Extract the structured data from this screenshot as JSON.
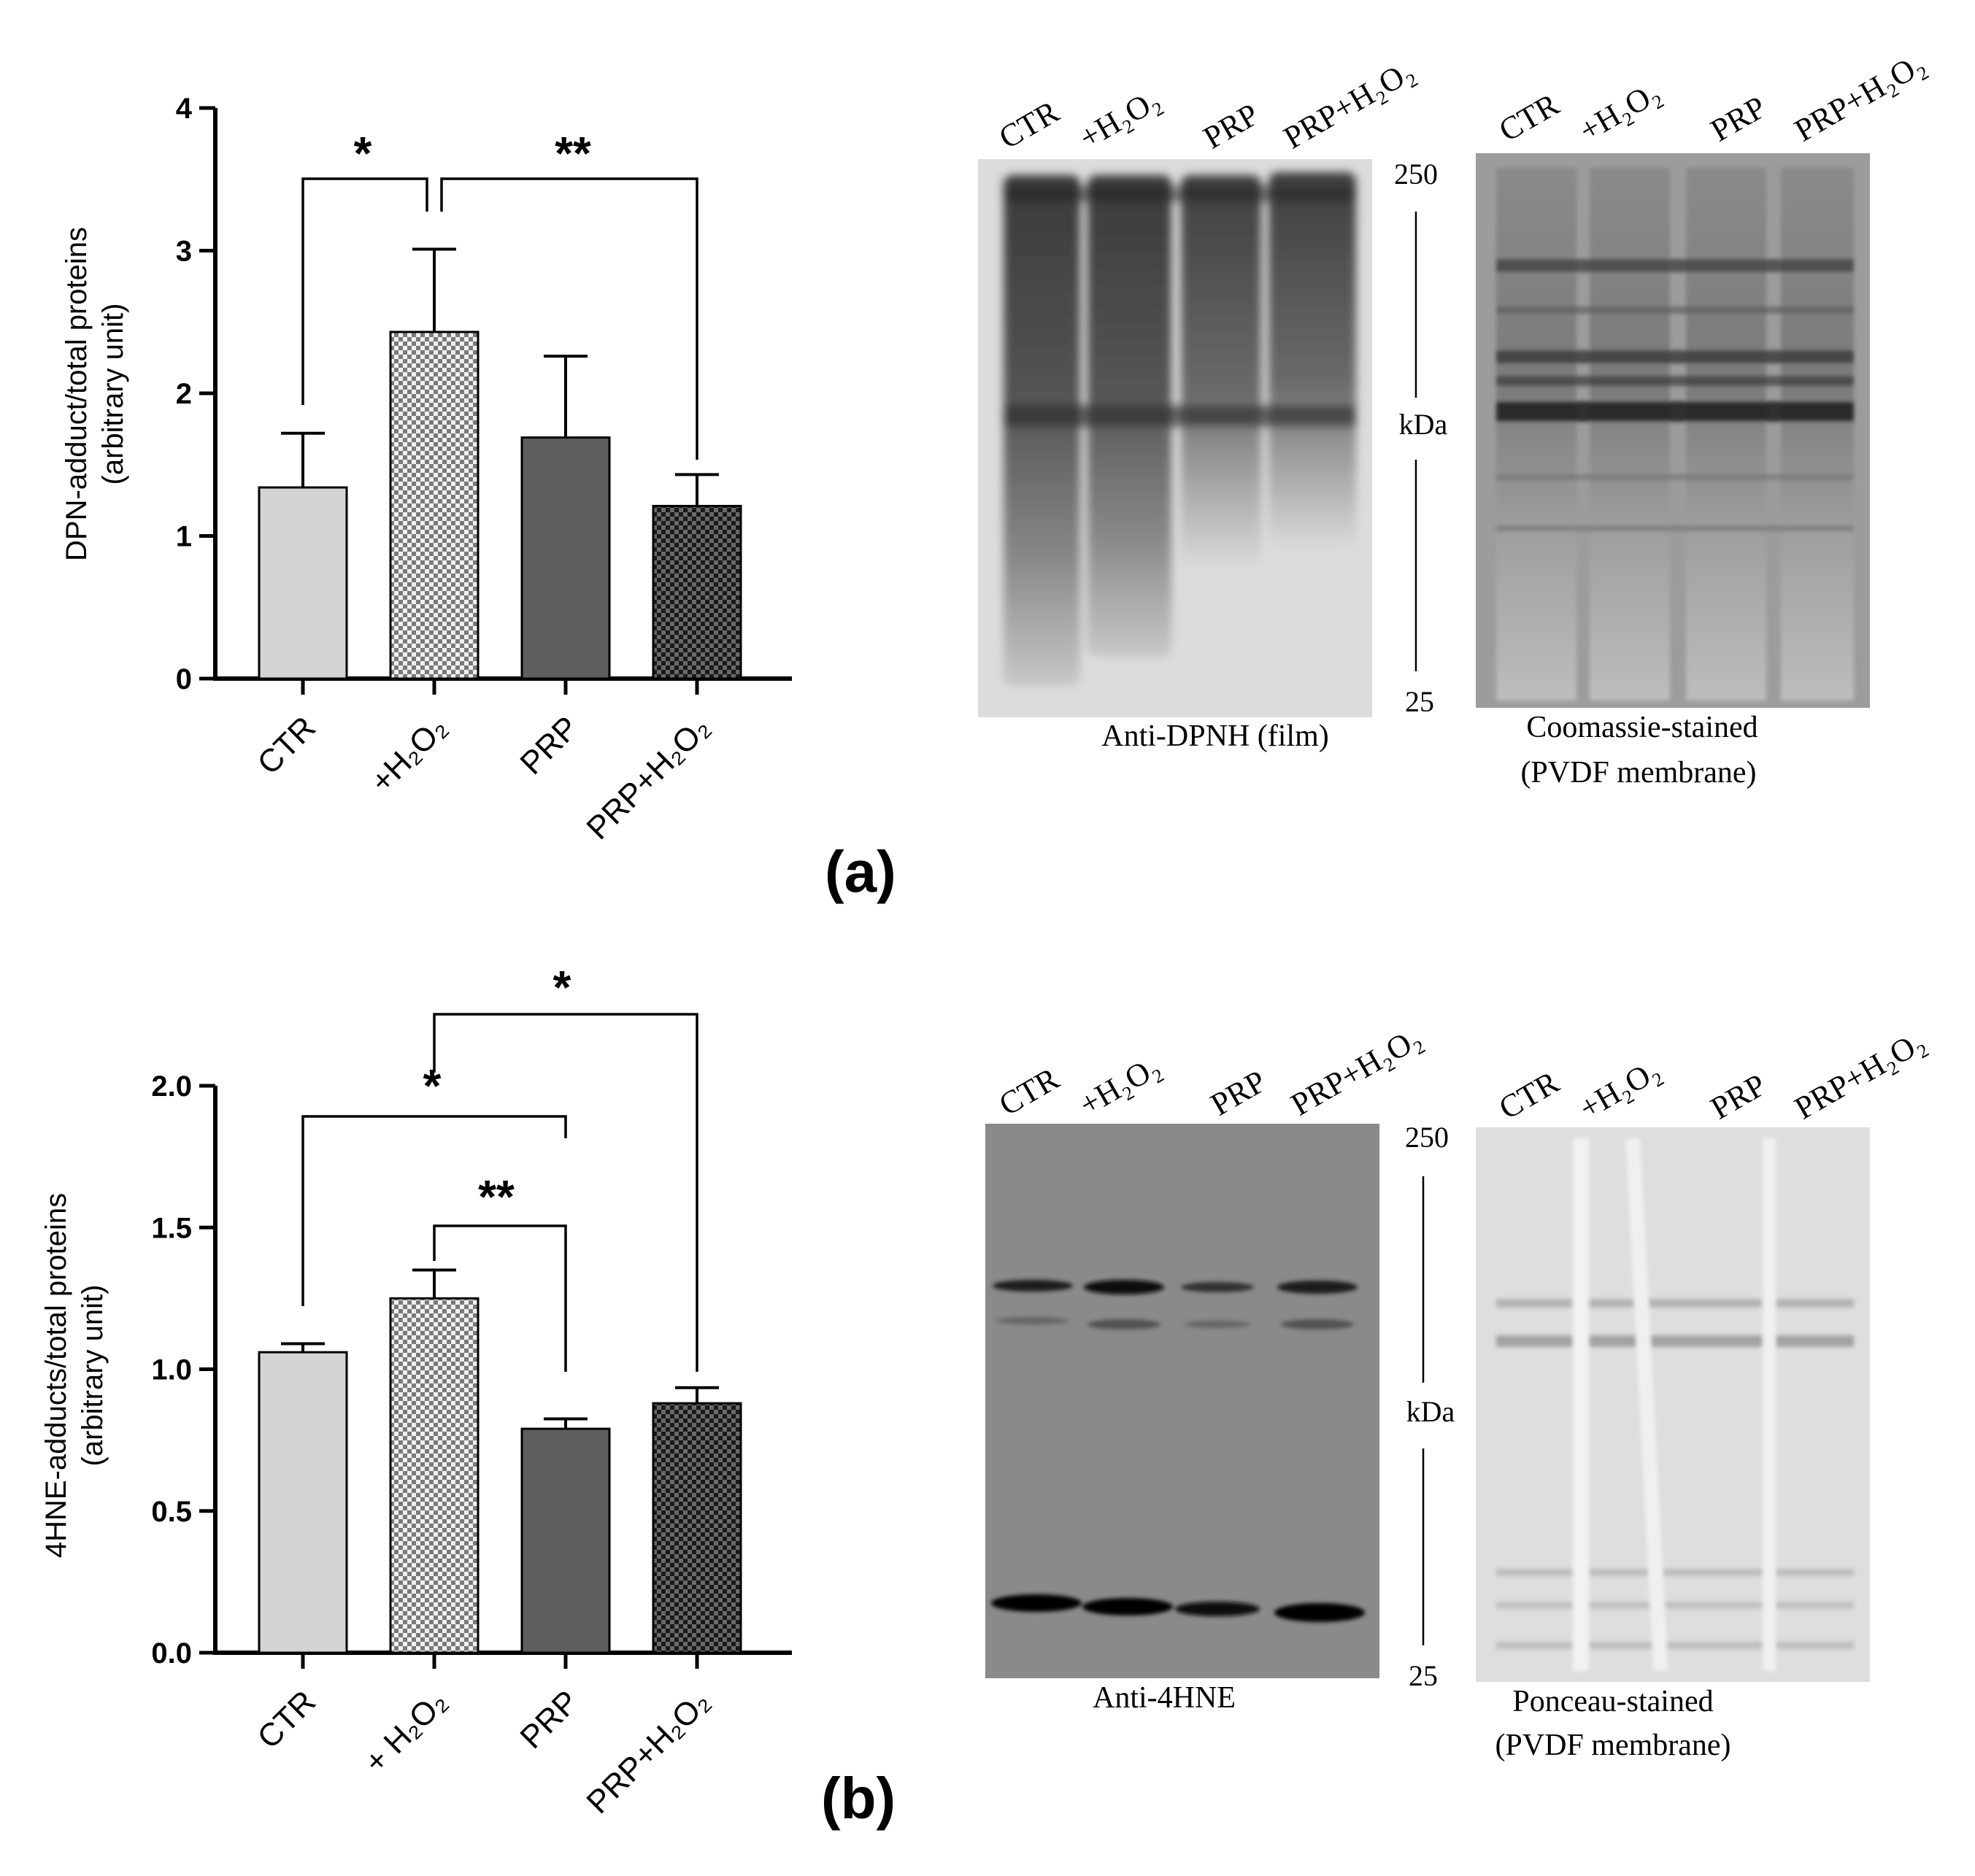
{
  "chart_data": [
    {
      "type": "bar",
      "panel_label": "(a)",
      "categories": [
        "CTR",
        "+H₂O₂",
        "PRP",
        "PRP+H₂O₂"
      ],
      "values": [
        1.34,
        2.43,
        1.69,
        1.21
      ],
      "errors": [
        0.38,
        0.58,
        0.57,
        0.22
      ],
      "ylabel_lines": [
        "DPN-adduct/total proteins",
        "(arbitrary unit)"
      ],
      "ylim": [
        0,
        4
      ],
      "yticks": [
        0,
        1,
        2,
        3,
        4
      ],
      "ytick_labels": [
        "0",
        "1",
        "2",
        "3",
        "4"
      ],
      "significance": [
        {
          "from": 0,
          "to": 1,
          "label": "*"
        },
        {
          "from": 1,
          "to": 3,
          "label": "**"
        }
      ]
    },
    {
      "type": "bar",
      "panel_label": "(b)",
      "categories": [
        "CTR",
        "+ H₂O₂",
        "PRP",
        "PRP+H₂O₂"
      ],
      "values": [
        1.06,
        1.25,
        0.79,
        0.88
      ],
      "errors": [
        0.03,
        0.1,
        0.035,
        0.055
      ],
      "ylabel_lines": [
        "4HNE-adducts/total proteins",
        "(arbitrary unit)"
      ],
      "ylim": [
        0,
        2
      ],
      "yticks": [
        0,
        0.5,
        1,
        1.5,
        2
      ],
      "ytick_labels": [
        "0.0",
        "0.5",
        "1.0",
        "1.5",
        "2.0"
      ],
      "significance": [
        {
          "from": 1,
          "to": 3,
          "label": "*"
        },
        {
          "from": 0,
          "to": 2,
          "label": "*"
        },
        {
          "from": 1,
          "to": 2,
          "label": "**"
        }
      ]
    }
  ],
  "blots": {
    "a_left": {
      "lanes": [
        "CTR",
        "+H₂O₂",
        "PRP",
        "PRP+H₂O₂"
      ],
      "caption": "Anti-DPNH (film)"
    },
    "a_right": {
      "lanes": [
        "CTR",
        "+H₂O₂",
        "PRP",
        "PRP+H₂O₂"
      ],
      "caption_lines": [
        "Coomassie-stained",
        "(PVDF membrane)"
      ]
    },
    "a_markers": {
      "top": "250",
      "mid": "kDa",
      "bottom": "25"
    },
    "b_left": {
      "lanes": [
        "CTR",
        "+H₂O₂",
        "PRP",
        "PRP+H₂O₂"
      ],
      "caption": "Anti-4HNE"
    },
    "b_right": {
      "lanes": [
        "CTR",
        "+H₂O₂",
        "PRP",
        "PRP+H₂O₂"
      ],
      "caption_lines": [
        "Ponceau-stained",
        "(PVDF membrane)"
      ]
    },
    "b_markers": {
      "top": "250",
      "mid": "kDa",
      "bottom": "25"
    }
  },
  "colors": {
    "bar_light": "#d4d4d4",
    "bar_dark": "#5e5e5e",
    "checker_light": "#b0b0b0",
    "checker_dark": "#2e2e2e"
  }
}
